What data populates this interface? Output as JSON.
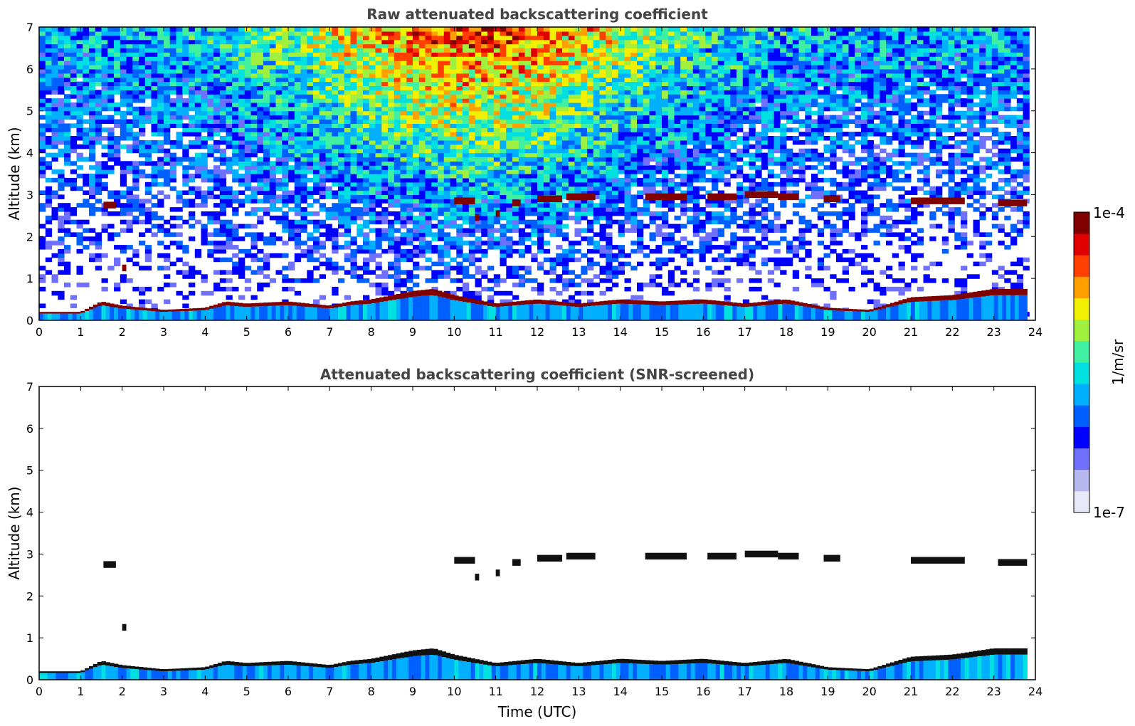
{
  "colorbar": {
    "unit_label": "1/m/sr",
    "max_label": "1e-4",
    "min_label": "1e-7",
    "range": [
      1e-07,
      0.0001
    ],
    "scale": "log",
    "colormap": "jet",
    "colors": [
      "#e8e8f8",
      "#b8b8f0",
      "#7070ff",
      "#0000ff",
      "#0060ff",
      "#00b0ff",
      "#00e0e0",
      "#40f0a0",
      "#a0f040",
      "#f0f000",
      "#ffa000",
      "#ff4000",
      "#e00000",
      "#800000"
    ]
  },
  "chart_data": [
    {
      "type": "heatmap",
      "title": "Raw attenuated backscattering coefficient",
      "xlabel": "",
      "ylabel": "Altitude (km)",
      "xlim": [
        0,
        24
      ],
      "ylim": [
        0,
        7
      ],
      "x_ticks": [
        "0",
        "1",
        "2",
        "3",
        "4",
        "5",
        "6",
        "7",
        "8",
        "9",
        "10",
        "11",
        "12",
        "13",
        "14",
        "15",
        "16",
        "17",
        "18",
        "19",
        "20",
        "21",
        "22",
        "23",
        "24"
      ],
      "y_ticks": [
        "0",
        "1",
        "2",
        "3",
        "4",
        "5",
        "6",
        "7"
      ],
      "screened": false,
      "boundary_layer_top_km": [
        [
          0,
          0.2
        ],
        [
          1,
          0.2
        ],
        [
          1.5,
          0.45
        ],
        [
          2,
          0.35
        ],
        [
          3,
          0.25
        ],
        [
          4,
          0.3
        ],
        [
          4.5,
          0.45
        ],
        [
          5,
          0.4
        ],
        [
          6,
          0.45
        ],
        [
          7,
          0.35
        ],
        [
          7.5,
          0.45
        ],
        [
          8,
          0.5
        ],
        [
          8.5,
          0.6
        ],
        [
          9,
          0.7
        ],
        [
          9.5,
          0.75
        ],
        [
          10,
          0.6
        ],
        [
          11,
          0.4
        ],
        [
          12,
          0.5
        ],
        [
          13,
          0.4
        ],
        [
          14,
          0.5
        ],
        [
          15,
          0.45
        ],
        [
          16,
          0.5
        ],
        [
          17,
          0.4
        ],
        [
          18,
          0.5
        ],
        [
          19,
          0.3
        ],
        [
          20,
          0.25
        ],
        [
          21,
          0.55
        ],
        [
          22,
          0.6
        ],
        [
          23,
          0.75
        ],
        [
          23.8,
          0.75
        ]
      ],
      "cloud_layers_km": [
        {
          "start": 1.55,
          "end": 1.85,
          "alt": 2.75
        },
        {
          "start": 2.0,
          "end": 2.1,
          "alt": 1.25
        },
        {
          "start": 10.0,
          "end": 10.5,
          "alt": 2.85
        },
        {
          "start": 10.5,
          "end": 10.6,
          "alt": 2.45
        },
        {
          "start": 11.0,
          "end": 11.1,
          "alt": 2.55
        },
        {
          "start": 11.4,
          "end": 11.6,
          "alt": 2.8
        },
        {
          "start": 12.0,
          "end": 12.6,
          "alt": 2.9
        },
        {
          "start": 12.7,
          "end": 13.4,
          "alt": 2.95
        },
        {
          "start": 14.6,
          "end": 15.6,
          "alt": 2.95
        },
        {
          "start": 16.1,
          "end": 16.8,
          "alt": 2.95
        },
        {
          "start": 17.0,
          "end": 17.8,
          "alt": 3.0
        },
        {
          "start": 17.8,
          "end": 18.3,
          "alt": 2.95
        },
        {
          "start": 18.9,
          "end": 19.3,
          "alt": 2.9
        },
        {
          "start": 21.0,
          "end": 22.3,
          "alt": 2.85
        },
        {
          "start": 23.1,
          "end": 23.8,
          "alt": 2.8
        }
      ]
    },
    {
      "type": "heatmap",
      "title": "Attenuated backscattering coefficient (SNR-screened)",
      "xlabel": "Time (UTC)",
      "ylabel": "Altitude (km)",
      "xlim": [
        0,
        24
      ],
      "ylim": [
        0,
        7
      ],
      "x_ticks": [
        "0",
        "1",
        "2",
        "3",
        "4",
        "5",
        "6",
        "7",
        "8",
        "9",
        "10",
        "11",
        "12",
        "13",
        "14",
        "15",
        "16",
        "17",
        "18",
        "19",
        "20",
        "21",
        "22",
        "23",
        "24"
      ],
      "y_ticks": [
        "0",
        "1",
        "2",
        "3",
        "4",
        "5",
        "6",
        "7"
      ],
      "screened": true
    }
  ]
}
